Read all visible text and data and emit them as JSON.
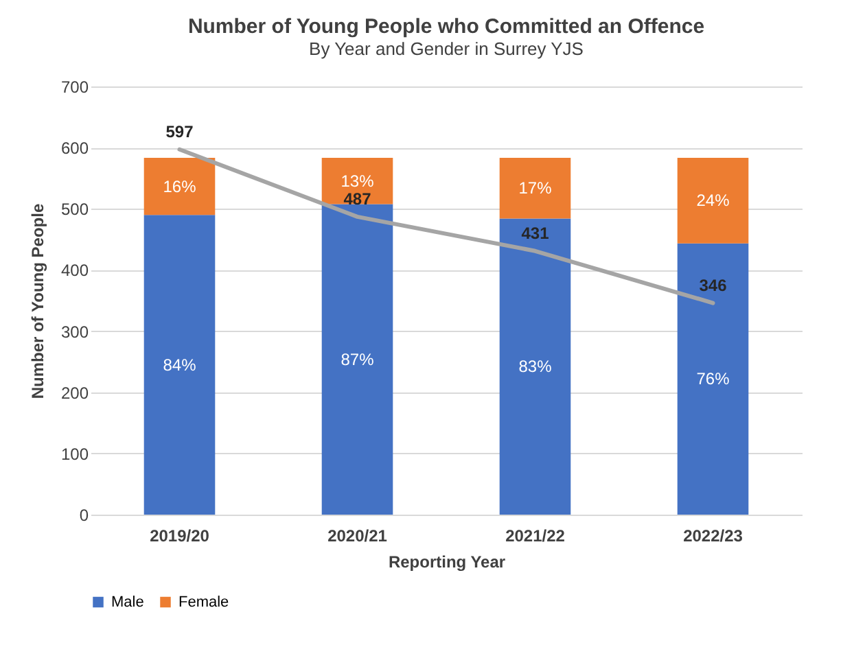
{
  "chart_data": {
    "type": "bar",
    "title": "Number of Young People who Committed an Offence",
    "subtitle": "By Year and Gender in Surrey YJS",
    "xlabel": "Reporting Year",
    "ylabel": "Number of Young People",
    "categories": [
      "2019/20",
      "2020/21",
      "2021/22",
      "2022/23"
    ],
    "stacked": true,
    "series": [
      {
        "name": "Male",
        "color": "#4472c4",
        "axis": "y2",
        "values": [
          84,
          87,
          83,
          76
        ],
        "value_labels": [
          "84%",
          "87%",
          "83%",
          "76%"
        ]
      },
      {
        "name": "Female",
        "color": "#ed7d31",
        "axis": "y2",
        "values": [
          16,
          13,
          17,
          24
        ],
        "value_labels": [
          "16%",
          "13%",
          "17%",
          "24%"
        ]
      },
      {
        "type": "line",
        "color": "#a5a5a5",
        "values": [
          597,
          487,
          431,
          346
        ],
        "value_labels": [
          "597",
          "487",
          "431",
          "346"
        ]
      }
    ],
    "ylim": [
      0,
      700
    ],
    "yticks": [
      0,
      100,
      200,
      300,
      400,
      500,
      600,
      700
    ],
    "y2lim": [
      0,
      120
    ],
    "grid": "y",
    "legend": "bottom"
  }
}
